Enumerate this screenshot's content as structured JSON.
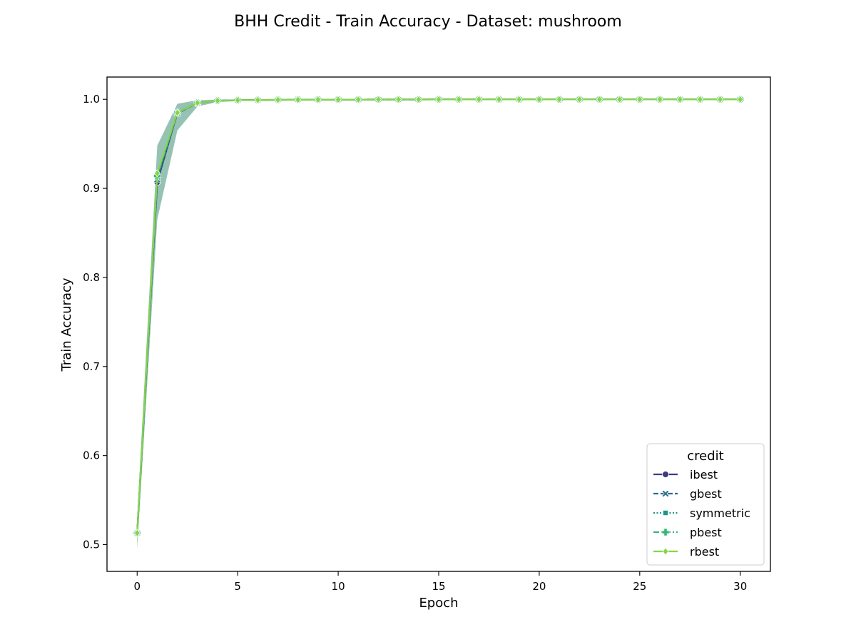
{
  "chart_data": {
    "type": "line",
    "title": "BHH Credit - Train Accuracy - Dataset: mushroom",
    "xlabel": "Epoch",
    "ylabel": "Train Accuracy",
    "xlim": [
      -1.5,
      31.5
    ],
    "ylim": [
      0.47,
      1.025
    ],
    "xticks": [
      0,
      5,
      10,
      15,
      20,
      25,
      30
    ],
    "yticks": [
      0.5,
      0.6,
      0.7,
      0.8,
      0.9,
      1.0
    ],
    "xtick_labels": [
      "0",
      "5",
      "10",
      "15",
      "20",
      "25",
      "30"
    ],
    "ytick_labels": [
      "0.5",
      "0.6",
      "0.7",
      "0.8",
      "0.9",
      "1.0"
    ],
    "grid": false,
    "legend": {
      "title": "credit",
      "placement": "bottom-right"
    },
    "band": {
      "lower": [
        0.495,
        0.865,
        0.965,
        0.992,
        0.997,
        0.998,
        0.999
      ],
      "upper": [
        0.53,
        0.948,
        0.995,
        0.999,
        0.9995,
        1.0,
        1.0
      ]
    },
    "series": [
      {
        "name": "ibest",
        "color": "#3e3a82",
        "marker": "circle",
        "dash": "solid",
        "values": [
          0.513,
          0.907,
          0.985,
          0.996,
          0.9985,
          0.999,
          0.9992,
          0.9994,
          0.9995,
          0.9996,
          0.9997,
          0.9997,
          0.9998,
          0.9998,
          0.9998,
          0.9999,
          0.9999,
          0.9999,
          0.9999,
          0.9999,
          0.9999,
          0.9999,
          0.9999,
          0.9999,
          0.9999,
          0.9999,
          0.9999,
          0.9999,
          0.9999,
          0.9999,
          0.9999
        ]
      },
      {
        "name": "gbest",
        "color": "#2c6a8c",
        "marker": "x",
        "dash": "dashed",
        "values": [
          0.513,
          0.91,
          0.984,
          0.996,
          0.9985,
          0.999,
          0.9992,
          0.9994,
          0.9995,
          0.9996,
          0.9997,
          0.9997,
          0.9998,
          0.9998,
          0.9998,
          0.9999,
          0.9999,
          0.9999,
          0.9999,
          0.9999,
          0.9999,
          0.9999,
          0.9999,
          0.9999,
          0.9999,
          0.9999,
          0.9999,
          0.9999,
          0.9999,
          0.9999,
          0.9999
        ]
      },
      {
        "name": "symmetric",
        "color": "#1f948b",
        "marker": "square",
        "dash": "dotted",
        "values": [
          0.513,
          0.912,
          0.985,
          0.996,
          0.9985,
          0.999,
          0.9992,
          0.9994,
          0.9995,
          0.9996,
          0.9997,
          0.9997,
          0.9998,
          0.9998,
          0.9998,
          0.9999,
          0.9999,
          0.9999,
          0.9999,
          0.9999,
          0.9999,
          0.9999,
          0.9999,
          0.9999,
          0.9999,
          0.9999,
          0.9999,
          0.9999,
          0.9999,
          0.9999,
          0.9999
        ]
      },
      {
        "name": "pbest",
        "color": "#35b779",
        "marker": "plus",
        "dash": "dashdot",
        "values": [
          0.513,
          0.914,
          0.985,
          0.996,
          0.9985,
          0.999,
          0.9992,
          0.9994,
          0.9995,
          0.9996,
          0.9997,
          0.9997,
          0.9998,
          0.9998,
          0.9998,
          0.9999,
          0.9999,
          0.9999,
          0.9999,
          0.9999,
          0.9999,
          0.9999,
          0.9999,
          0.9999,
          0.9999,
          0.9999,
          0.9999,
          0.9999,
          0.9999,
          0.9999,
          0.9999
        ]
      },
      {
        "name": "rbest",
        "color": "#86d549",
        "marker": "diamond",
        "dash": "solid",
        "values": [
          0.513,
          0.917,
          0.985,
          0.996,
          0.9985,
          0.999,
          0.9992,
          0.9994,
          0.9995,
          0.9996,
          0.9997,
          0.9997,
          0.9998,
          0.9998,
          0.9998,
          0.9999,
          0.9999,
          0.9999,
          0.9999,
          0.9999,
          0.9999,
          0.9999,
          0.9999,
          0.9999,
          0.9999,
          0.9999,
          0.9999,
          0.9999,
          0.9999,
          0.9999,
          0.9999
        ]
      }
    ]
  }
}
